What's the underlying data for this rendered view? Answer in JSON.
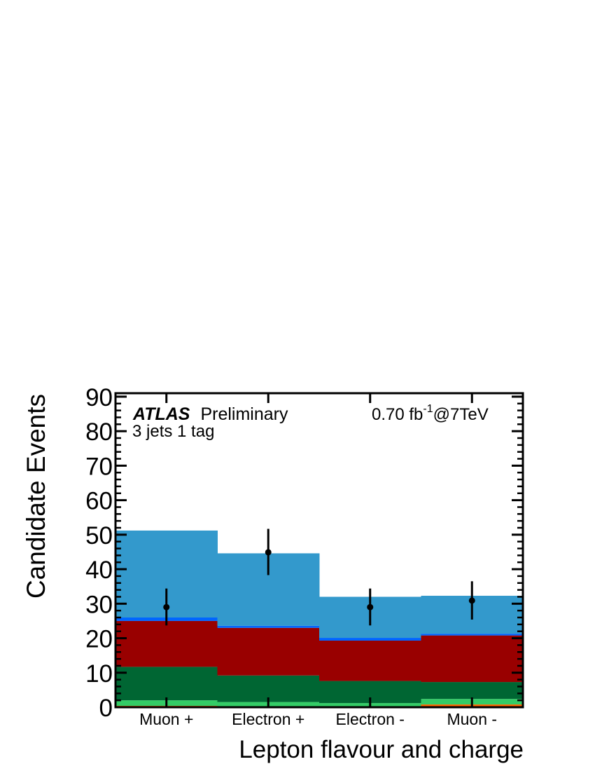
{
  "chart_data": {
    "type": "bar",
    "stacked": true,
    "categories": [
      "Muon +",
      "Electron +",
      "Electron -",
      "Muon -"
    ],
    "ylabel": "Candidate Events",
    "xlabel": "Lepton flavour and charge",
    "ylim": [
      0,
      91
    ],
    "yticks": [
      "0",
      "10",
      "20",
      "30",
      "40",
      "50",
      "60",
      "70",
      "80",
      "90"
    ],
    "experiment": "ATLAS",
    "status": "Preliminary",
    "lumi_value": "0.70 fb",
    "lumi_exp": "-1",
    "lumi_energy": "@7TeV",
    "selection": "3 jets 1 tag",
    "series": [
      {
        "color": "#ff6600",
        "values": [
          0.4,
          0.3,
          0.2,
          0.8
        ]
      },
      {
        "color": "#33cc66",
        "values": [
          1.6,
          1.2,
          1.0,
          1.6
        ]
      },
      {
        "color": "#006633",
        "values": [
          9.7,
          7.7,
          6.4,
          4.9
        ]
      },
      {
        "color": "#990000",
        "values": [
          13.3,
          13.8,
          11.7,
          13.5
        ]
      },
      {
        "color": "#0066ff",
        "values": [
          1.0,
          0.6,
          0.8,
          0.5
        ]
      },
      {
        "color": "#3399cc",
        "values": [
          25.2,
          21.0,
          11.9,
          11.0
        ]
      }
    ],
    "data_points": {
      "values": [
        29.0,
        44.9,
        29.0,
        30.9
      ],
      "err_up": [
        5.4,
        6.8,
        5.4,
        5.6
      ],
      "err_down": [
        5.3,
        6.6,
        5.3,
        5.5
      ]
    }
  }
}
